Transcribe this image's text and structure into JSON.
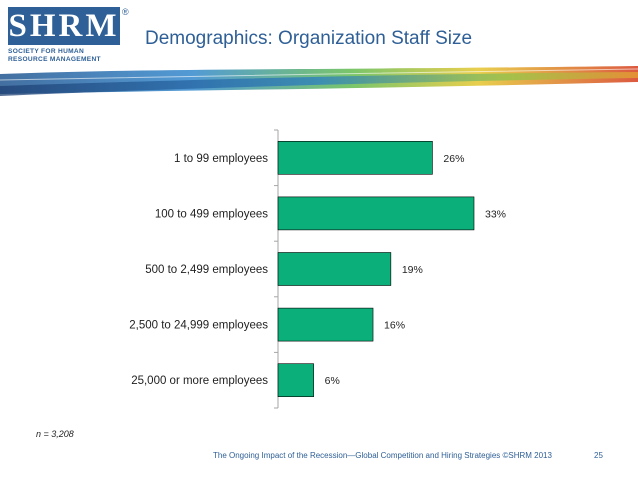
{
  "logo": {
    "mark": "SHRM",
    "registered": "®",
    "line1": "SOCIETY FOR HUMAN",
    "line2": "RESOURCE MANAGEMENT"
  },
  "slide": {
    "title": "Demographics: Organization Staff Size",
    "sample_note": "n = 3,208",
    "footer": "The Ongoing Impact of the Recession—Global Competition and Hiring Strategies ©SHRM 2013",
    "page_number": "25"
  },
  "colors": {
    "bar": "#0aaf79",
    "bar_edge": "#000000",
    "axis": "#a6a6a6",
    "text": "#1f1f1f",
    "brand": "#2e5f96"
  },
  "chart_data": {
    "type": "bar",
    "orientation": "horizontal",
    "title": "",
    "xlabel": "",
    "ylabel": "",
    "xlim": [
      0,
      35
    ],
    "grid": false,
    "categories": [
      "1 to 99 employees",
      "100 to 499 employees",
      "500 to 2,499 employees",
      "2,500 to 24,999 employees",
      "25,000 or more employees"
    ],
    "values": [
      26,
      33,
      19,
      16,
      6
    ],
    "labels": [
      "26%",
      "33%",
      "19%",
      "16%",
      "6%"
    ]
  }
}
